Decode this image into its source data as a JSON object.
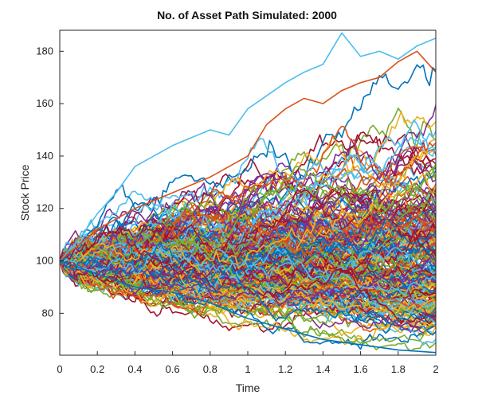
{
  "chart_data": {
    "type": "line",
    "title": "No. of Asset Path Simulated: 2000",
    "xlabel": "Time",
    "ylabel": "Stock Price",
    "xlim": [
      0,
      2
    ],
    "ylim": [
      64,
      188
    ],
    "x_ticks": [
      0,
      0.2,
      0.4,
      0.6,
      0.8,
      1,
      1.2,
      1.4,
      1.6,
      1.8,
      2
    ],
    "x_tick_labels": [
      "0",
      "0.2",
      "0.4",
      "0.6",
      "0.8",
      "1",
      "1.2",
      "1.4",
      "1.6",
      "1.8",
      "2"
    ],
    "y_ticks": [
      80,
      100,
      120,
      140,
      160,
      180
    ],
    "y_tick_labels": [
      "80",
      "100",
      "120",
      "140",
      "160",
      "180"
    ],
    "grid": false,
    "legend": "none",
    "num_paths": 2000,
    "initial_price": 100,
    "colors": [
      "#0072BD",
      "#D95319",
      "#EDB120",
      "#7E2F8E",
      "#77AC30",
      "#4DBEEE",
      "#A2142F"
    ],
    "highlighted_paths": [
      {
        "color": "#4DBEEE",
        "x": [
          0,
          0.1,
          0.2,
          0.3,
          0.4,
          0.5,
          0.6,
          0.7,
          0.8,
          0.9,
          1.0,
          1.1,
          1.2,
          1.3,
          1.4,
          1.5,
          1.6,
          1.7,
          1.8,
          1.9,
          2.0
        ],
        "y": [
          100,
          108,
          118,
          126,
          136,
          140,
          144,
          147,
          150,
          148,
          158,
          163,
          168,
          172,
          175,
          187,
          178,
          180,
          177,
          182,
          185
        ]
      },
      {
        "color": "#D95319",
        "x": [
          0,
          0.2,
          0.4,
          0.6,
          0.8,
          1.0,
          1.1,
          1.2,
          1.3,
          1.4,
          1.5,
          1.6,
          1.7,
          1.8,
          1.9,
          2.0
        ],
        "y": [
          100,
          112,
          120,
          126,
          132,
          140,
          152,
          158,
          162,
          160,
          165,
          168,
          170,
          176,
          180,
          172
        ]
      },
      {
        "color": "#0072BD",
        "x": [
          0,
          0.2,
          0.4,
          0.6,
          0.8,
          1.0,
          1.2,
          1.4,
          1.6,
          1.8,
          2.0
        ],
        "y": [
          100,
          95,
          90,
          88,
          84,
          78,
          74,
          70,
          68,
          66,
          65
        ]
      }
    ]
  }
}
